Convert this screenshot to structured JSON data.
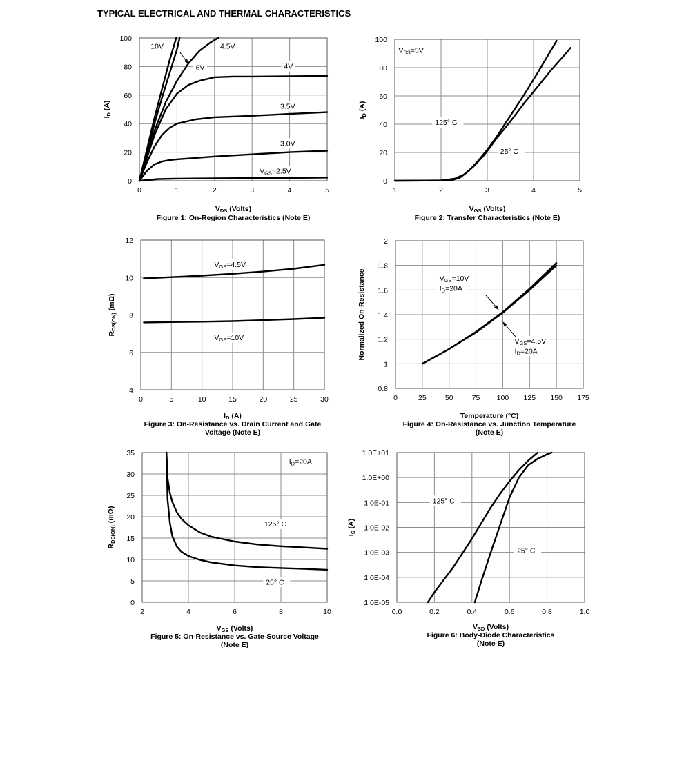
{
  "page_title": "TYPICAL ELECTRICAL AND THERMAL CHARACTERISTICS",
  "chart_data": [
    {
      "id": "fig1",
      "type": "line",
      "caption": [
        "Figure 1: On-Region Characteristics (Note E)"
      ],
      "xlabel": {
        "main": "V",
        "sub": "DS",
        "rest": " (Volts)"
      },
      "ylabel": {
        "main": "I",
        "sub": "D",
        "rest": " (A)"
      },
      "xlim": [
        0,
        5
      ],
      "ylim": [
        0,
        100
      ],
      "xticks": [
        0,
        1,
        2,
        3,
        4,
        5
      ],
      "xtick_labels": [
        "0",
        "1",
        "2",
        "3",
        "4",
        "5"
      ],
      "yticks": [
        0,
        20,
        40,
        60,
        80,
        100
      ],
      "ytick_labels": [
        "0",
        "20",
        "40",
        "60",
        "80",
        "100"
      ],
      "series": [
        {
          "name": "10V",
          "x": [
            0,
            0.2,
            0.4,
            0.6,
            0.8,
            0.98
          ],
          "y": [
            0,
            22,
            44,
            64,
            84,
            100
          ]
        },
        {
          "name": "6V",
          "x": [
            0,
            0.2,
            0.4,
            0.6,
            0.8,
            1.0,
            1.07
          ],
          "y": [
            0,
            20,
            40,
            58,
            75,
            92,
            100
          ]
        },
        {
          "name": "4.5V",
          "x": [
            0,
            0.2,
            0.4,
            0.7,
            1.0,
            1.3,
            1.6,
            1.9,
            2.1
          ],
          "y": [
            0,
            18,
            35,
            55,
            70,
            82,
            91,
            97,
            100
          ]
        },
        {
          "name": "4V",
          "x": [
            0,
            0.2,
            0.4,
            0.7,
            1.0,
            1.3,
            1.6,
            2.0,
            2.5,
            3.0,
            4.0,
            5.0
          ],
          "y": [
            0,
            16,
            32,
            50,
            61,
            67,
            70,
            72.5,
            73,
            73,
            73.2,
            73.5
          ]
        },
        {
          "name": "3.5V",
          "x": [
            0,
            0.2,
            0.4,
            0.6,
            0.8,
            1.0,
            1.5,
            2.0,
            3.0,
            4.0,
            5.0
          ],
          "y": [
            0,
            13,
            24,
            32,
            37,
            40,
            43,
            44.5,
            45.5,
            46.8,
            48
          ]
        },
        {
          "name": "3.0V",
          "x": [
            0,
            0.2,
            0.4,
            0.6,
            0.8,
            1.0,
            1.5,
            2.0,
            3.0,
            4.0,
            5.0
          ],
          "y": [
            0,
            7,
            11.5,
            13.5,
            14.5,
            15,
            16,
            17,
            18.5,
            20,
            21
          ]
        },
        {
          "name": "VGS=2.5V",
          "x": [
            0,
            0.5,
            1,
            2,
            3,
            4,
            5
          ],
          "y": [
            0,
            1.2,
            1.5,
            1.7,
            1.9,
            2.0,
            2.2
          ]
        }
      ],
      "annotations": [
        {
          "text": "10V",
          "x": 0.3,
          "y": 93
        },
        {
          "text": "4.5V",
          "x": 2.15,
          "y": 93
        },
        {
          "text": "6V",
          "x": 1.5,
          "y": 78
        },
        {
          "text": "4V",
          "x": 3.85,
          "y": 79
        },
        {
          "text": "3.5V",
          "x": 3.75,
          "y": 51
        },
        {
          "text": "3.0V",
          "x": 3.75,
          "y": 25
        },
        {
          "text": "V",
          "sub": "GS",
          "rest": "=2.5V",
          "x": 3.2,
          "y": 5.5
        }
      ],
      "legend_position": "none"
    },
    {
      "id": "fig2",
      "type": "line",
      "caption": [
        "Figure 2: Transfer Characteristics (Note E)"
      ],
      "xlabel": {
        "main": "V",
        "sub": "GS",
        "rest": " (Volts)"
      },
      "ylabel": {
        "main": "I",
        "sub": "D",
        "rest": " (A)"
      },
      "xlim": [
        1,
        5
      ],
      "ylim": [
        0,
        100
      ],
      "xticks": [
        1,
        2,
        3,
        4,
        5
      ],
      "xtick_labels": [
        "1",
        "2",
        "3",
        "4",
        "5"
      ],
      "yticks": [
        0,
        20,
        40,
        60,
        80,
        100
      ],
      "ytick_labels": [
        "0",
        "20",
        "40",
        "60",
        "80",
        "100"
      ],
      "series": [
        {
          "name": "125° C",
          "x": [
            1,
            2.0,
            2.3,
            2.5,
            2.7,
            2.9,
            3.0,
            3.2,
            3.5,
            3.8,
            4.1,
            4.4,
            4.7,
            4.8
          ],
          "y": [
            0,
            0.2,
            1.5,
            4.5,
            10,
            17,
            21,
            30,
            42,
            55,
            67,
            79,
            90,
            94
          ]
        },
        {
          "name": "25° C",
          "x": [
            1,
            2.2,
            2.4,
            2.6,
            2.8,
            3.0,
            3.2,
            3.5,
            3.8,
            4.1,
            4.3,
            4.5
          ],
          "y": [
            0,
            0.2,
            2,
            7,
            14,
            22,
            31,
            46,
            61,
            77,
            88,
            99
          ]
        }
      ],
      "annotations": [
        {
          "text": "V",
          "sub": "DS",
          "rest": "=5V",
          "x": 1.08,
          "y": 91
        },
        {
          "text": "125° C",
          "x": 1.87,
          "y": 40
        },
        {
          "text": "25° C",
          "x": 3.28,
          "y": 19.5
        }
      ],
      "legend_position": "none"
    },
    {
      "id": "fig3",
      "type": "line",
      "caption": [
        "Figure 3: On-Resistance vs. Drain Current and Gate",
        "Voltage (Note E)"
      ],
      "xlabel": {
        "main": "I",
        "sub": "D",
        "rest": " (A)"
      },
      "ylabel": {
        "main": "R",
        "sub": "DS(ON)",
        "rest": " (mΩ)"
      },
      "xlim": [
        0,
        30
      ],
      "ylim": [
        4,
        12
      ],
      "xticks": [
        0,
        5,
        10,
        15,
        20,
        25,
        30
      ],
      "xtick_labels": [
        "0",
        "5",
        "10",
        "15",
        "20",
        "25",
        "30"
      ],
      "yticks": [
        4,
        6,
        8,
        10,
        12
      ],
      "ytick_labels": [
        "4",
        "6",
        "8",
        "10",
        "12"
      ],
      "series": [
        {
          "name": "VGS=4.5V",
          "x": [
            0.5,
            5,
            10,
            15,
            20,
            25,
            30
          ],
          "y": [
            9.95,
            10.02,
            10.1,
            10.2,
            10.32,
            10.47,
            10.68
          ]
        },
        {
          "name": "VGS=10V",
          "x": [
            0.5,
            5,
            10,
            15,
            20,
            25,
            30
          ],
          "y": [
            7.6,
            7.62,
            7.64,
            7.67,
            7.72,
            7.78,
            7.85
          ]
        }
      ],
      "annotations": [
        {
          "text": "V",
          "sub": "GS",
          "rest": "=4.5V",
          "x": 12,
          "y": 10.6
        },
        {
          "text": "V",
          "sub": "GS",
          "rest": "=10V",
          "x": 12,
          "y": 6.7
        }
      ],
      "legend_position": "none"
    },
    {
      "id": "fig4",
      "type": "line",
      "caption": [
        "Figure 4: On-Resistance vs. Junction Temperature",
        "(Note E)"
      ],
      "xlabel": {
        "main": "Temperature (°C)",
        "sub": "",
        "rest": ""
      },
      "ylabel": {
        "main": "Normalized On-Resistance",
        "sub": "",
        "rest": ""
      },
      "xlim": [
        0,
        175
      ],
      "ylim": [
        0.8,
        2
      ],
      "xticks": [
        0,
        25,
        50,
        75,
        100,
        125,
        150,
        175
      ],
      "xtick_labels": [
        "0",
        "25",
        "50",
        "75",
        "100",
        "125",
        "150",
        "175"
      ],
      "yticks": [
        0.8,
        1,
        1.2,
        1.4,
        1.6,
        1.8,
        2
      ],
      "ytick_labels": [
        "0.8",
        "1",
        "1.2",
        "1.4",
        "1.6",
        "1.8",
        "2"
      ],
      "series": [
        {
          "name": "VGS=10V, ID=20A",
          "x": [
            25,
            50,
            75,
            100,
            125,
            150
          ],
          "y": [
            1.0,
            1.12,
            1.26,
            1.42,
            1.61,
            1.82
          ]
        },
        {
          "name": "VGS=4.5V, ID=20A",
          "x": [
            25,
            50,
            75,
            100,
            125,
            150
          ],
          "y": [
            1.0,
            1.12,
            1.255,
            1.415,
            1.6,
            1.8
          ]
        }
      ],
      "annotations": [
        {
          "text": "V",
          "sub": "GS",
          "rest": "=10V",
          "x": 41,
          "y": 1.68
        },
        {
          "text": "I",
          "sub": "D",
          "rest": "=20A",
          "x": 41,
          "y": 1.6
        },
        {
          "text": "V",
          "sub": "GS",
          "rest": "=4.5V",
          "x": 111,
          "y": 1.17
        },
        {
          "text": "I",
          "sub": "D",
          "rest": "=20A",
          "x": 111,
          "y": 1.09
        }
      ],
      "legend_position": "none"
    },
    {
      "id": "fig5",
      "type": "line",
      "caption": [
        "Figure 5: On-Resistance vs. Gate-Source Voltage",
        "(Note E)"
      ],
      "xlabel": {
        "main": "V",
        "sub": "GS",
        "rest": " (Volts)"
      },
      "ylabel": {
        "main": "R",
        "sub": "DS(ON)",
        "rest": " (mΩ)"
      },
      "xlim": [
        2,
        10
      ],
      "ylim": [
        0,
        35
      ],
      "xticks": [
        2,
        4,
        6,
        8,
        10
      ],
      "xtick_labels": [
        "2",
        "4",
        "6",
        "8",
        "10"
      ],
      "yticks": [
        0,
        5,
        10,
        15,
        20,
        25,
        30,
        35
      ],
      "ytick_labels": [
        "0",
        "5",
        "10",
        "15",
        "20",
        "25",
        "30",
        "35"
      ],
      "series": [
        {
          "name": "125° C",
          "x": [
            3.05,
            3.1,
            3.2,
            3.3,
            3.5,
            3.7,
            4.0,
            4.5,
            5.0,
            6.0,
            7.0,
            8.0,
            9.0,
            10.0
          ],
          "y": [
            35,
            29,
            25.5,
            23.5,
            21,
            19.5,
            18,
            16.3,
            15.3,
            14.2,
            13.5,
            13.1,
            12.8,
            12.5
          ]
        },
        {
          "name": "25° C",
          "x": [
            3.05,
            3.1,
            3.2,
            3.3,
            3.5,
            3.7,
            4.0,
            4.5,
            5.0,
            6.0,
            7.0,
            8.0,
            9.0,
            10.0
          ],
          "y": [
            35,
            24,
            18.5,
            15.5,
            13,
            11.8,
            10.8,
            9.9,
            9.3,
            8.6,
            8.2,
            8.0,
            7.8,
            7.6
          ]
        }
      ],
      "annotations": [
        {
          "text": "I",
          "sub": "D",
          "rest": "=20A",
          "x": 8.35,
          "y": 32.5
        },
        {
          "text": "125° C",
          "x": 7.28,
          "y": 17.9
        },
        {
          "text": "25° C",
          "x": 7.35,
          "y": 4.3
        }
      ],
      "legend_position": "none"
    },
    {
      "id": "fig6",
      "type": "line",
      "scale_y": "log",
      "caption": [
        "Figure 6: Body-Diode Characteristics",
        "(Note E)"
      ],
      "xlabel": {
        "main": "V",
        "sub": "SD",
        "rest": " (Volts)"
      },
      "ylabel": {
        "main": "I",
        "sub": "S",
        "rest": " (A)"
      },
      "xlim": [
        0,
        1.0
      ],
      "ylim_exp": [
        -5,
        1
      ],
      "xticks": [
        0,
        0.2,
        0.4,
        0.6,
        0.8,
        1.0
      ],
      "xtick_labels": [
        "0.0",
        "0.2",
        "0.4",
        "0.6",
        "0.8",
        "1.0"
      ],
      "yticks_exp": [
        -5,
        -4,
        -3,
        -2,
        -1,
        0,
        1
      ],
      "ytick_labels": [
        "1.0E-05",
        "1.0E-04",
        "1.0E-03",
        "1.0E-02",
        "1.0E-01",
        "1.0E+00",
        "1.0E+01"
      ],
      "series": [
        {
          "name": "125° C",
          "x": [
            0.165,
            0.2,
            0.3,
            0.4,
            0.5,
            0.55,
            0.6,
            0.65,
            0.7,
            0.75
          ],
          "log_y": [
            -5,
            -4.6,
            -3.6,
            -2.45,
            -1.2,
            -0.65,
            -0.15,
            0.3,
            0.68,
            1.0
          ]
        },
        {
          "name": "25° C",
          "x": [
            0.415,
            0.45,
            0.5,
            0.55,
            0.6,
            0.65,
            0.7,
            0.75,
            0.8,
            0.825
          ],
          "log_y": [
            -5,
            -4.15,
            -3.0,
            -1.9,
            -0.8,
            0.0,
            0.5,
            0.75,
            0.93,
            1.0
          ]
        }
      ],
      "annotations": [
        {
          "text": "125° C",
          "x": 0.19,
          "y_exp": -1
        },
        {
          "text": "25° C",
          "x": 0.64,
          "y_exp": -3
        }
      ],
      "legend_position": "none"
    }
  ]
}
